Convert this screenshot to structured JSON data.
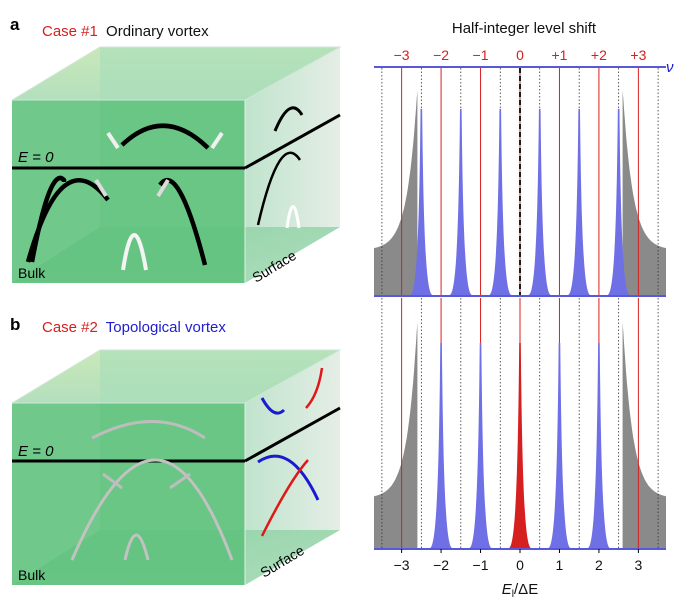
{
  "panel_a": {
    "letter": "a",
    "case_label": "Case #1",
    "case_desc": "Ordinary vortex",
    "e_label": "E = 0",
    "bulk_label": "Bulk",
    "surface_label": "Surface"
  },
  "panel_b": {
    "letter": "b",
    "case_label": "Case #2",
    "case_desc": "Topological vortex",
    "e_label": "E = 0",
    "bulk_label": "Bulk",
    "surface_label": "Surface"
  },
  "right": {
    "title": "Half-integer level shift",
    "top_ticks": [
      "−3",
      "−2",
      "−1",
      "0",
      "+1",
      "+2",
      "+3"
    ],
    "nu_label": "ν",
    "bottom_ticks": [
      "−3",
      "−2",
      "−1",
      "0",
      "1",
      "2",
      "3"
    ],
    "xlabel_main": "E",
    "xlabel_sub": "l",
    "xlabel_rest": "/ΔE"
  },
  "colors": {
    "red": "#d62020",
    "blue": "#2020d0",
    "peak_blue": "#6f6fe6",
    "gray": "#8a8a8a",
    "green_face": "#5cc07a"
  },
  "chart_data": [
    {
      "type": "area",
      "panel": "a",
      "xlim": [
        -3.7,
        3.7
      ],
      "x_unit": "E_l/ΔE",
      "red_lines": [
        -3,
        -2,
        -1,
        0,
        1,
        2,
        3
      ],
      "dotted_lines": [
        -3.5,
        -2.5,
        -1.5,
        -0.5,
        0.5,
        1.5,
        2.5,
        3.5
      ],
      "dashed_line": 0,
      "blue_peaks": [
        -2.5,
        -1.5,
        -0.5,
        0.5,
        1.5,
        2.5
      ],
      "red_peaks": [],
      "gray_continuum_edges": [
        -2.6,
        2.6
      ]
    },
    {
      "type": "area",
      "panel": "b",
      "xlim": [
        -3.7,
        3.7
      ],
      "x_unit": "E_l/ΔE",
      "red_lines": [
        -3,
        -2,
        -1,
        0,
        1,
        2,
        3
      ],
      "dotted_lines": [
        -3.5,
        -2.5,
        -1.5,
        -0.5,
        0.5,
        1.5,
        2.5,
        3.5
      ],
      "blue_peaks": [
        -2,
        -1,
        1,
        2
      ],
      "red_peaks": [
        0
      ],
      "gray_continuum_edges": [
        -2.6,
        2.6
      ]
    }
  ]
}
